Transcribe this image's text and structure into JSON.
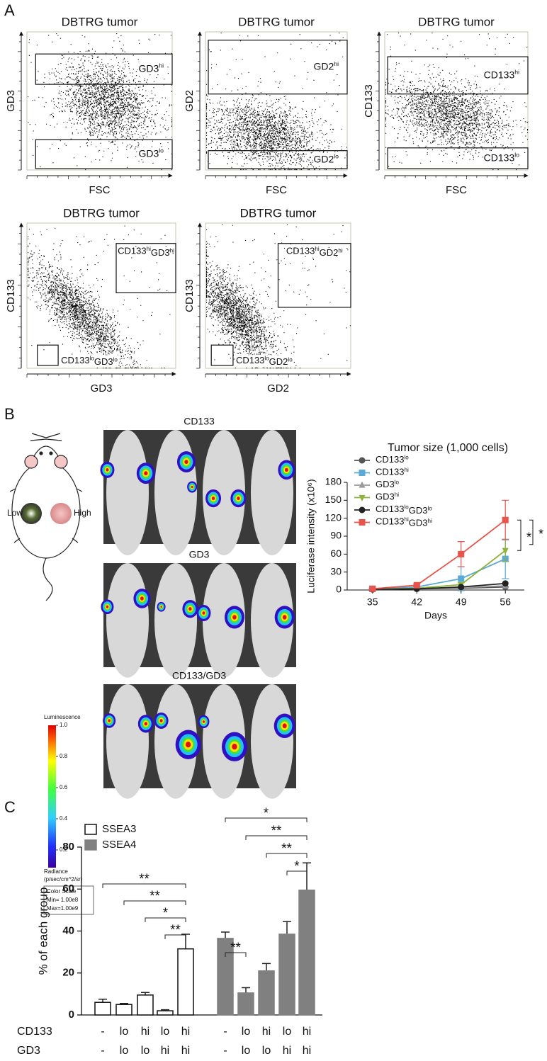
{
  "panel_labels": [
    "A",
    "B",
    "C"
  ],
  "flow_plots": [
    {
      "title": "DBTRG tumor",
      "xlabel": "FSC",
      "ylabel": "GD3",
      "gates": [
        "GD3hi",
        "GD3lo"
      ]
    },
    {
      "title": "DBTRG tumor",
      "xlabel": "FSC",
      "ylabel": "GD2",
      "gates": [
        "GD2hi",
        "GD2lo"
      ]
    },
    {
      "title": "DBTRG tumor",
      "xlabel": "FSC",
      "ylabel": "CD133",
      "gates": [
        "CD133hi",
        "CD133lo"
      ]
    },
    {
      "title": "DBTRG tumor",
      "xlabel": "GD3",
      "ylabel": "CD133",
      "gates": [
        "CD133hiGD3hi",
        "CD133loGD3lo"
      ]
    },
    {
      "title": "DBTRG tumor",
      "xlabel": "GD2",
      "ylabel": "CD133",
      "gates": [
        "CD133hiGD2hi",
        "CD133loGD2lo"
      ]
    }
  ],
  "imaging": {
    "mouse_labels": [
      "Low",
      "High"
    ],
    "image_titles": [
      "CD133",
      "GD3",
      "CD133/GD3"
    ],
    "colorbar": {
      "title": "Luminescence",
      "ticks": [
        {
          "value": 1,
          "label": "1.0"
        },
        0.8,
        0.6,
        0.4,
        0.2
      ],
      "unit_lines": [
        "Radiance",
        "(p/sec/cm^2/sr)"
      ],
      "scale_lines": [
        "Color Scale",
        "Min= 1.00e8",
        "Max=1.00e9"
      ]
    }
  },
  "chart_data": [
    {
      "type": "line",
      "title": "Tumor size (1,000 cells)",
      "xlabel": "Days",
      "ylabel": "Luciferase intensity (x10⁶)",
      "x": [
        35,
        42,
        49,
        56
      ],
      "xlim": [
        31,
        59
      ],
      "xticks": [
        35,
        42,
        49,
        56
      ],
      "ylim": [
        0,
        180
      ],
      "yticks": [
        0,
        30,
        60,
        90,
        120,
        150,
        180
      ],
      "series": [
        {
          "name": "CD133lo",
          "color": "#555555",
          "marker": "circle",
          "values": [
            1,
            2,
            3,
            5
          ],
          "errors": [
            null,
            null,
            null,
            null
          ]
        },
        {
          "name": "CD133hi",
          "color": "#5aa9d6",
          "marker": "square",
          "values": [
            2,
            5,
            19,
            52
          ],
          "errors": [
            1,
            2,
            20,
            33
          ]
        },
        {
          "name": "GD3lo",
          "color": "#9a9a9a",
          "marker": "triangle",
          "values": [
            1,
            2,
            4,
            7
          ],
          "errors": [
            null,
            null,
            null,
            null
          ]
        },
        {
          "name": "GD3hi",
          "color": "#8db33a",
          "marker": "triangle-down",
          "values": [
            1,
            3,
            9,
            66
          ],
          "errors": [
            null,
            null,
            3,
            18
          ]
        },
        {
          "name": "CD133loGD3lo",
          "color": "#222222",
          "marker": "circle",
          "values": [
            1,
            2,
            5,
            11
          ],
          "errors": [
            null,
            null,
            null,
            null
          ]
        },
        {
          "name": "CD133hiGD3hi",
          "color": "#e8534a",
          "marker": "square",
          "values": [
            2,
            8,
            60,
            117
          ],
          "errors": [
            1,
            2,
            21,
            33
          ]
        }
      ],
      "annotations": [
        "*",
        "*"
      ]
    },
    {
      "type": "bar",
      "ylabel": "% of each group",
      "ylim": [
        0,
        80
      ],
      "yticks": [
        0,
        20,
        40,
        60,
        80
      ],
      "category_rows": [
        {
          "name": "CD133",
          "labels": [
            "-",
            "lo",
            "hi",
            "lo",
            "hi"
          ]
        },
        {
          "name": "GD3",
          "labels": [
            "-",
            "lo",
            "lo",
            "hi",
            "hi"
          ]
        }
      ],
      "series": [
        {
          "name": "SSEA3",
          "color": "#ffffff",
          "values": [
            6,
            5,
            9.5,
            2,
            31.5
          ],
          "errors": [
            1.5,
            0.5,
            1.2,
            0.5,
            7
          ],
          "significance": [
            {
              "from": 0,
              "to": 4,
              "label": "**"
            },
            {
              "from": 1,
              "to": 4,
              "label": "**"
            },
            {
              "from": 2,
              "to": 4,
              "label": "*"
            },
            {
              "from": 3,
              "to": 4,
              "label": "**"
            }
          ]
        },
        {
          "name": "SSEA4",
          "color": "#808080",
          "values": [
            36.5,
            10.5,
            21,
            38.5,
            59.5
          ],
          "errors": [
            3,
            2.5,
            3.5,
            6,
            13
          ],
          "significance": [
            {
              "from": 0,
              "to": 4,
              "label": "*"
            },
            {
              "from": 1,
              "to": 4,
              "label": "**"
            },
            {
              "from": 2,
              "to": 4,
              "label": "**"
            },
            {
              "from": 3,
              "to": 4,
              "label": "*"
            },
            {
              "from": 0,
              "to": 1,
              "label": "**"
            }
          ]
        }
      ]
    }
  ]
}
